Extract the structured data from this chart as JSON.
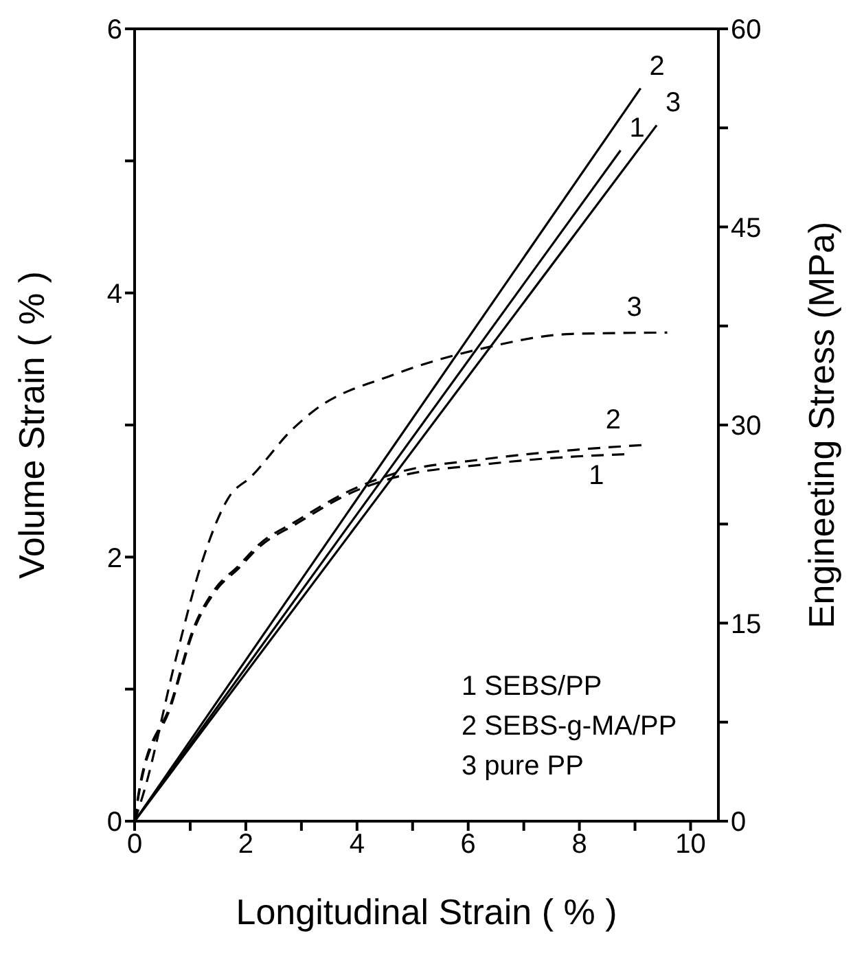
{
  "chart_data": {
    "type": "line",
    "xlabel": "Longitudinal Strain ( % )",
    "ylabel": "Volume Strain ( % )",
    "y2label": "Engineeting Stress (MPa)",
    "xlim": [
      0,
      10.5
    ],
    "xticks": [
      0,
      {
        "value": 1,
        "label": null
      },
      2,
      {
        "value": 3,
        "label": null
      },
      4,
      {
        "value": 5,
        "label": null
      },
      6,
      {
        "value": 7,
        "label": null
      },
      8,
      {
        "value": 9,
        "label": null
      },
      10
    ],
    "ylim": [
      0,
      6
    ],
    "yticks": [
      0,
      {
        "value": 1,
        "label": null
      },
      2,
      {
        "value": 3,
        "label": null
      },
      4,
      {
        "value": 5,
        "label": null
      },
      6
    ],
    "y2lim": [
      0,
      60
    ],
    "y2ticks": [
      0,
      {
        "value": 7.5,
        "label": null
      },
      15,
      {
        "value": 22.5,
        "label": null
      },
      30,
      {
        "value": 37.5,
        "label": null
      },
      45,
      {
        "value": 52.5,
        "label": null
      },
      60
    ],
    "marker": "none",
    "series": [
      {
        "name": "1",
        "color": "#000000",
        "line_style": "solid",
        "x": [
          0,
          8.74
        ],
        "values": [
          0,
          5.08
        ]
      },
      {
        "name": "2",
        "color": "#000000",
        "line_style": "solid",
        "x": [
          0,
          9.1
        ],
        "values": [
          0,
          5.55
        ]
      },
      {
        "name": "3",
        "color": "#000000",
        "line_style": "solid",
        "x": [
          0,
          9.39
        ],
        "values": [
          0,
          5.27
        ]
      },
      {
        "name": "1",
        "color": "#000000",
        "line_style": "dashed",
        "axis": "y2",
        "x": [
          0,
          0.1,
          0.66,
          1.05,
          1.45,
          1.86,
          2.25,
          2.9,
          3.86,
          4.65,
          6.26,
          7.87,
          8.9
        ],
        "values": [
          0,
          2.6,
          8.8,
          14.3,
          17.4,
          19.1,
          20.8,
          22.5,
          24.8,
          26.0,
          27.0,
          27.6,
          27.8
        ]
      },
      {
        "name": "2",
        "color": "#000000",
        "line_style": "dashed",
        "axis": "y2",
        "x": [
          0,
          0.1,
          0.66,
          1.05,
          1.45,
          1.86,
          2.25,
          2.9,
          3.86,
          4.65,
          6.26,
          7.87,
          9.2
        ],
        "values": [
          0,
          2.8,
          9.0,
          14.5,
          17.6,
          19.3,
          21.0,
          22.7,
          25.0,
          26.3,
          27.4,
          28.1,
          28.5
        ]
      },
      {
        "name": "3",
        "color": "#000000",
        "line_style": "dashed",
        "axis": "y2",
        "x": [
          0,
          0.18,
          0.73,
          1.21,
          1.69,
          2.1,
          2.82,
          3.2,
          4.65,
          6.26,
          7.87,
          9.58
        ],
        "values": [
          0,
          2.4,
          12.1,
          19.6,
          24.5,
          26.1,
          29.6,
          31.0,
          33.8,
          35.8,
          36.9,
          37.0
        ]
      }
    ],
    "annotations": [
      "1 SEBS/PP",
      "2 SEBS-g-MA/PP",
      "3 pure PP"
    ]
  }
}
